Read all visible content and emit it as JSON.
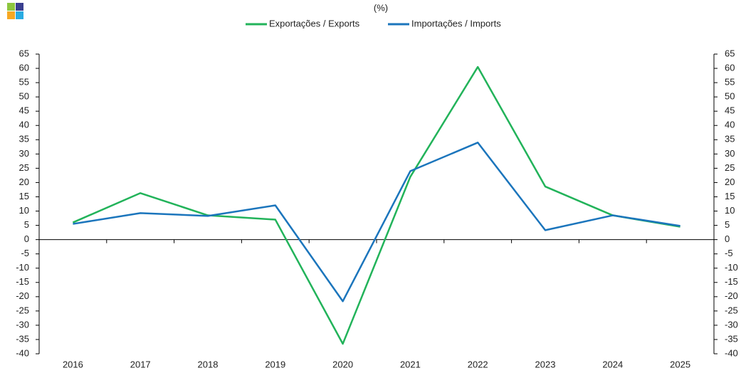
{
  "chart_data": {
    "type": "line",
    "subtitle": "(%)",
    "categories": [
      "2016",
      "2017",
      "2018",
      "2019",
      "2020",
      "2021",
      "2022",
      "2023",
      "2024",
      "2025"
    ],
    "series": [
      {
        "name": "Exportações / Exports",
        "color": "#22b35a",
        "values": [
          6,
          16.3,
          8.5,
          7,
          -36.5,
          22,
          60.5,
          18.6,
          8.5,
          4.5
        ]
      },
      {
        "name": "Importações / Imports",
        "color": "#1b75bc",
        "values": [
          5.5,
          9.3,
          8.3,
          12,
          -21.6,
          24,
          34,
          3.3,
          8.5,
          4.8
        ]
      }
    ],
    "ylim": [
      -40,
      65
    ],
    "yticks": [
      -40,
      -35,
      -30,
      -25,
      -20,
      -15,
      -10,
      -5,
      0,
      5,
      10,
      15,
      20,
      25,
      30,
      35,
      40,
      45,
      50,
      55,
      60,
      65
    ],
    "y2lim": [
      -40,
      65
    ],
    "y2ticks": [
      -40,
      -35,
      -30,
      -25,
      -20,
      -15,
      -10,
      -5,
      0,
      5,
      10,
      15,
      20,
      25,
      30,
      35,
      40,
      45,
      50,
      55,
      60,
      65
    ],
    "grid": false,
    "legend": "top"
  }
}
